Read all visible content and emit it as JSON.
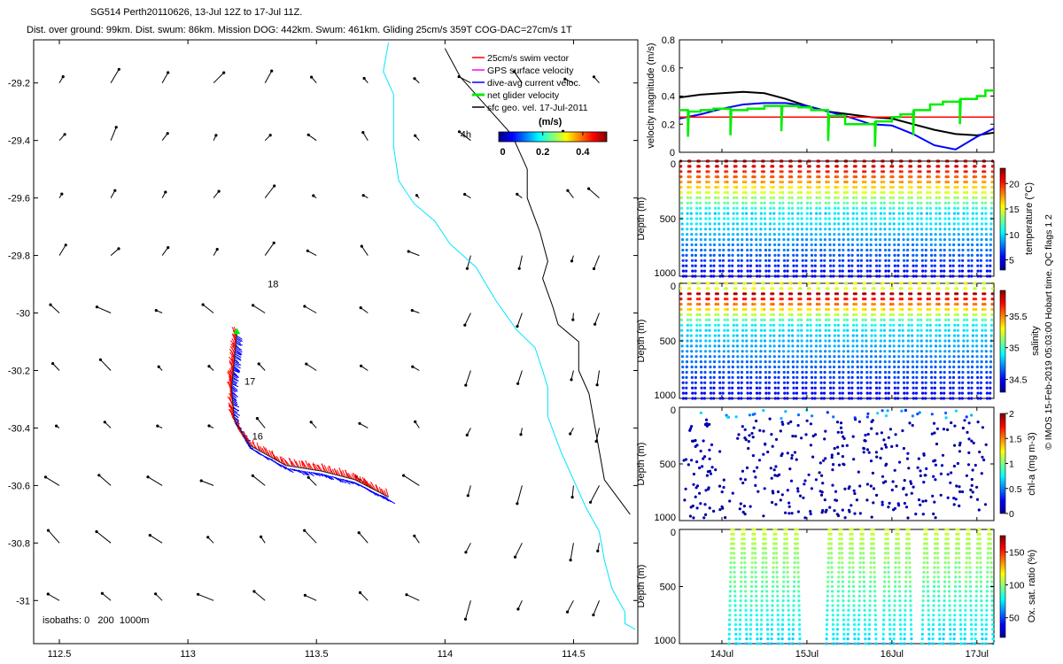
{
  "header": {
    "line1": "SG514 Perth20110626, 13-Jul 12Z to 17-Jul 11Z.",
    "line2": "Dist. over ground: 99km. Dist. swum: 86km. Mission DOG: 442km. Swum: 461km. Gliding 25cm/s 359T COG-DAC=27cm/s 1T"
  },
  "credit": "© IMOS 15-Feb-2019 05:03:00 Hobart time. QC flags 1 2",
  "chart_data": [
    {
      "type": "scatter",
      "panel": "map",
      "xlim": [
        112.4,
        114.75
      ],
      "ylim": [
        -31.15,
        -29.05
      ],
      "xticks": [
        112.5,
        113,
        113.5,
        114,
        114.5
      ],
      "xtick_labels": [
        "112.5",
        "113",
        "113.5",
        "114",
        "114.5"
      ],
      "yticks": [
        -29.2,
        -29.4,
        -29.6,
        -29.8,
        -30,
        -30.2,
        -30.4,
        -30.6,
        -30.8,
        -31
      ],
      "ytick_labels": [
        "-29.2",
        "-29.4",
        "-29.6",
        "-29.8",
        "-30",
        "-30.2",
        "-30.4",
        "-30.6",
        "-30.8",
        "-31"
      ],
      "legend": {
        "placement": "top-right",
        "entries": [
          {
            "label": "25cm/s swim vector",
            "color": "#ff0000"
          },
          {
            "label": "GPS surface velocity",
            "color": "#ff00ff"
          },
          {
            "label": "dive-avg current veloc.",
            "color": "#0000ff"
          },
          {
            "label": "net glider velocity",
            "color": "#00ee00"
          },
          {
            "label": "sfc geo. vel. 17-Jul-2011",
            "color": "#000000"
          }
        ]
      },
      "colorbar": {
        "title": "(m/s)",
        "ticks": [
          0,
          0.2,
          0.4
        ],
        "tick_labels": [
          "0",
          "0.2",
          "0.4"
        ],
        "range": [
          -0.02,
          0.52
        ]
      },
      "isobaths_label": "isobaths: 0   200  1000m",
      "annotations": [
        {
          "text": "18",
          "lon": 113.31,
          "lat": -29.91
        },
        {
          "text": "17",
          "lon": 113.22,
          "lat": -30.25
        },
        {
          "text": "16",
          "lon": 113.25,
          "lat": -30.44
        },
        {
          "text": "4h",
          "lon": 114.06,
          "lat": -29.39
        }
      ],
      "track": [
        [
          113.19,
          -30.07
        ],
        [
          113.18,
          -30.17
        ],
        [
          113.17,
          -30.26
        ],
        [
          113.18,
          -30.37
        ],
        [
          113.24,
          -30.46
        ],
        [
          113.38,
          -30.53
        ],
        [
          113.52,
          -30.55
        ],
        [
          113.65,
          -30.58
        ],
        [
          113.78,
          -30.64
        ]
      ],
      "isobath_200": [
        [
          114.0,
          -29.08
        ],
        [
          114.06,
          -29.18
        ],
        [
          114.16,
          -29.28
        ],
        [
          114.26,
          -29.38
        ],
        [
          114.32,
          -29.5
        ],
        [
          114.32,
          -29.6
        ],
        [
          114.37,
          -29.72
        ],
        [
          114.4,
          -29.82
        ],
        [
          114.38,
          -29.88
        ],
        [
          114.42,
          -29.98
        ],
        [
          114.44,
          -30.04
        ],
        [
          114.52,
          -30.1
        ],
        [
          114.52,
          -30.2
        ],
        [
          114.56,
          -30.28
        ],
        [
          114.58,
          -30.38
        ],
        [
          114.6,
          -30.48
        ],
        [
          114.62,
          -30.58
        ],
        [
          114.72,
          -30.7
        ]
      ],
      "isobath_0": [
        [
          113.78,
          -29.06
        ],
        [
          113.76,
          -29.16
        ],
        [
          113.8,
          -29.24
        ],
        [
          113.8,
          -29.36
        ],
        [
          113.8,
          -29.42
        ],
        [
          113.82,
          -29.54
        ],
        [
          113.88,
          -29.62
        ],
        [
          113.96,
          -29.68
        ],
        [
          114.02,
          -29.76
        ],
        [
          114.12,
          -29.84
        ],
        [
          114.2,
          -29.96
        ],
        [
          114.28,
          -30.06
        ],
        [
          114.35,
          -30.12
        ],
        [
          114.38,
          -30.2
        ],
        [
          114.4,
          -30.26
        ],
        [
          114.4,
          -30.36
        ],
        [
          114.45,
          -30.48
        ],
        [
          114.5,
          -30.58
        ],
        [
          114.55,
          -30.68
        ],
        [
          114.6,
          -30.76
        ],
        [
          114.62,
          -30.86
        ],
        [
          114.65,
          -30.96
        ],
        [
          114.7,
          -31.04
        ],
        [
          114.7,
          -31.08
        ],
        [
          114.74,
          -31.1
        ]
      ],
      "vector_grid": {
        "lons": [
          112.5,
          112.7,
          112.9,
          113.1,
          113.3,
          113.5,
          113.7,
          113.9,
          114.1,
          114.3,
          114.5,
          114.6
        ],
        "lats": [
          -29.2,
          -29.4,
          -29.6,
          -29.8,
          -30,
          -30.2,
          -30.4,
          -30.6,
          -30.8,
          -31
        ]
      }
    },
    {
      "type": "line",
      "panel": "velocity",
      "ylabel": "velocity magnitude (m/s)",
      "ylim": [
        0,
        0.8
      ],
      "yticks": [
        0,
        0.2,
        0.4,
        0.6,
        0.8
      ],
      "ytick_labels": [
        "0",
        "0.2",
        "0.4",
        "0.6",
        "0.8"
      ],
      "xlim": [
        13.5,
        17.2
      ],
      "series": [
        {
          "color": "#000000",
          "x": [
            13.5,
            13.75,
            14.0,
            14.25,
            14.5,
            14.75,
            15.0,
            15.25,
            15.5,
            15.75,
            16.0,
            16.25,
            16.5,
            16.75,
            17.0,
            17.2
          ],
          "y": [
            0.39,
            0.41,
            0.42,
            0.43,
            0.42,
            0.38,
            0.33,
            0.29,
            0.27,
            0.25,
            0.24,
            0.2,
            0.16,
            0.13,
            0.12,
            0.14
          ]
        },
        {
          "color": "#0000ff",
          "x": [
            13.5,
            13.75,
            14.0,
            14.25,
            14.5,
            14.75,
            15.0,
            15.25,
            15.5,
            15.75,
            16.0,
            16.25,
            16.5,
            16.75,
            17.0,
            17.2
          ],
          "y": [
            0.24,
            0.27,
            0.31,
            0.34,
            0.35,
            0.35,
            0.33,
            0.29,
            0.25,
            0.2,
            0.19,
            0.13,
            0.05,
            0.02,
            0.11,
            0.17
          ]
        },
        {
          "color": "#ff0000",
          "x": [
            13.5,
            17.2
          ],
          "y": [
            0.25,
            0.25
          ]
        },
        {
          "color": "#00ee00",
          "x": [
            13.5,
            13.6,
            13.75,
            13.9,
            14.1,
            14.3,
            14.5,
            14.7,
            14.9,
            15.05,
            15.25,
            15.45,
            15.6,
            15.8,
            16.0,
            16.1,
            16.25,
            16.45,
            16.6,
            16.8,
            17.0,
            17.1,
            17.2
          ],
          "y": [
            0.3,
            0.29,
            0.3,
            0.31,
            0.3,
            0.31,
            0.33,
            0.33,
            0.32,
            0.3,
            0.26,
            0.2,
            0.2,
            0.22,
            0.25,
            0.27,
            0.3,
            0.34,
            0.36,
            0.38,
            0.4,
            0.44,
            0.44
          ]
        }
      ]
    },
    {
      "type": "scatter",
      "panel": "temperature",
      "ylabel": "Depth (m)",
      "ylim": [
        1000,
        0
      ],
      "yticks": [
        0,
        500,
        1000
      ],
      "ytick_labels": [
        "0",
        "500",
        "1000"
      ],
      "colorbar": {
        "label": "temperature (°C)",
        "ticks": [
          5,
          10,
          15,
          20
        ],
        "tick_labels": [
          "5",
          "10",
          "15",
          "20"
        ],
        "range": [
          3,
          23
        ]
      },
      "dives": 34,
      "max_depth": 1000
    },
    {
      "type": "scatter",
      "panel": "salinity",
      "ylabel": "Depth (m)",
      "ylim": [
        1000,
        0
      ],
      "yticks": [
        0,
        500,
        1000
      ],
      "ytick_labels": [
        "0",
        "500",
        "1000"
      ],
      "colorbar": {
        "label": "salinity",
        "ticks": [
          34.5,
          35,
          35.5
        ],
        "tick_labels": [
          "34.5",
          "35",
          "35.5"
        ],
        "range": [
          34.3,
          35.9
        ]
      },
      "dives": 34,
      "max_depth": 1000
    },
    {
      "type": "scatter",
      "panel": "chlorophyll",
      "ylabel": "Depth (m)",
      "ylim": [
        1000,
        0
      ],
      "yticks": [
        0,
        500,
        1000
      ],
      "ytick_labels": [
        "0",
        "500",
        "1000"
      ],
      "colorbar": {
        "label": "chl-a (mg m-3)",
        "ticks": [
          0,
          0.5,
          1,
          1.5,
          2
        ],
        "tick_labels": [
          "0",
          "0.5",
          "1",
          "1.5",
          "2"
        ],
        "range": [
          0,
          2
        ]
      },
      "points": 420
    },
    {
      "type": "scatter",
      "panel": "oxygen",
      "ylabel": "Depth (m)",
      "ylim": [
        1000,
        0
      ],
      "yticks": [
        0,
        500,
        1000
      ],
      "ytick_labels": [
        "0",
        "500",
        "1000"
      ],
      "colorbar": {
        "label": "Ox. sat. ratio (%)",
        "ticks": [
          50,
          100,
          150
        ],
        "tick_labels": [
          "50",
          "100",
          "150"
        ],
        "range": [
          20,
          175
        ]
      },
      "dives": 22,
      "xticks": [
        14,
        15,
        16,
        17
      ],
      "xtick_labels": [
        "14Jul",
        "15Jul",
        "16Jul",
        "17Jul"
      ]
    }
  ]
}
